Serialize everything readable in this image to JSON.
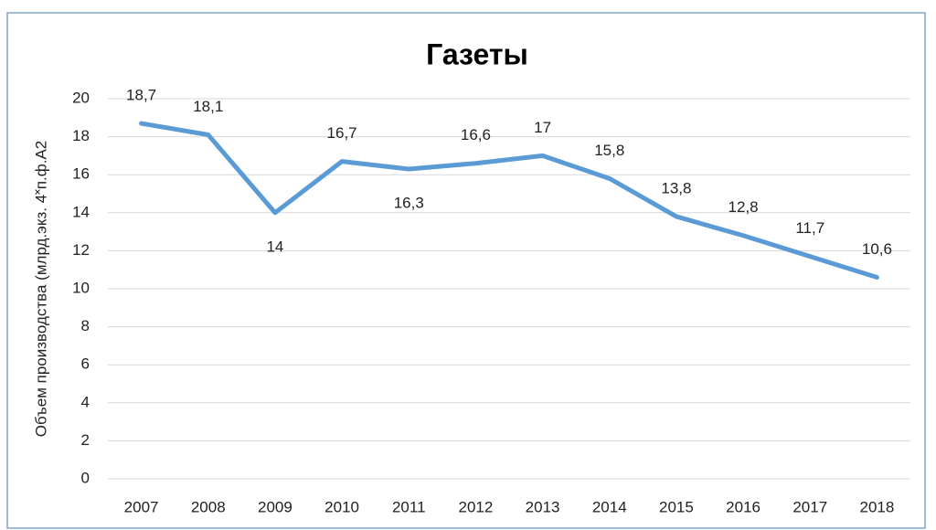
{
  "chart_data": {
    "type": "line",
    "title": "Газеты",
    "y_axis_label": "Объем производства (млрд.экз. 4˟п.ф.А2",
    "categories": [
      "2007",
      "2008",
      "2009",
      "2010",
      "2011",
      "2012",
      "2013",
      "2014",
      "2015",
      "2016",
      "2017",
      "2018"
    ],
    "series": [
      {
        "name": "Газеты",
        "color": "#5b9bd5",
        "values": [
          18.7,
          18.1,
          14,
          16.7,
          16.3,
          16.6,
          17,
          15.8,
          13.8,
          12.8,
          11.7,
          10.6
        ],
        "value_labels": [
          "18,7",
          "18,1",
          "14",
          "16,7",
          "16,3",
          "16,6",
          "17",
          "15,8",
          "13,8",
          "12,8",
          "11,7",
          "10,6"
        ]
      }
    ],
    "ylim": [
      0,
      20
    ],
    "yticks": [
      0,
      2,
      4,
      6,
      8,
      10,
      12,
      14,
      16,
      18,
      20
    ],
    "grid": true
  }
}
